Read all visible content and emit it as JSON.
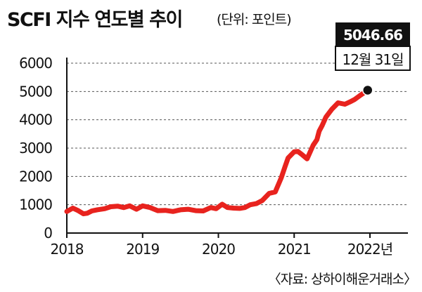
{
  "title": "SCFI 지수 연도별 추이",
  "unit": "(단위: 포인트)",
  "source": "〈자료: 상하이해운거래소〉",
  "callout": {
    "value": "5046.66",
    "date": "12월 31일"
  },
  "colors": {
    "line": "#e8231e",
    "text": "#111111",
    "grid": "#555555",
    "callout_bg": "#111111"
  },
  "chart_data": {
    "type": "line",
    "xlim": [
      2018,
      2022.3
    ],
    "ylim": [
      0,
      6000
    ],
    "x_ticks": [
      {
        "value": 2018,
        "label": "2018"
      },
      {
        "value": 2019,
        "label": "2019"
      },
      {
        "value": 2020,
        "label": "2020"
      },
      {
        "value": 2021,
        "label": "2021"
      },
      {
        "value": 2022,
        "label": "2022년"
      }
    ],
    "y_ticks": [
      {
        "value": 0,
        "label": "0"
      },
      {
        "value": 1000,
        "label": "1000"
      },
      {
        "value": 2000,
        "label": "2000"
      },
      {
        "value": 3000,
        "label": "3000"
      },
      {
        "value": 4000,
        "label": "4000"
      },
      {
        "value": 5000,
        "label": "5000"
      },
      {
        "value": 6000,
        "label": "6000"
      }
    ],
    "grid": "horizontal-dashed",
    "series": [
      {
        "x": [
          2018.0,
          2018.08,
          2018.15,
          2018.22,
          2018.27,
          2018.33,
          2018.4,
          2018.5,
          2018.58,
          2018.67,
          2018.75,
          2018.83,
          2018.92,
          2019.0,
          2019.1,
          2019.2,
          2019.3,
          2019.4,
          2019.5,
          2019.6,
          2019.7,
          2019.8,
          2019.9,
          2019.97,
          2020.05,
          2020.12,
          2020.2,
          2020.28,
          2020.35,
          2020.42,
          2020.5,
          2020.58,
          2020.67,
          2020.75,
          2020.83,
          2020.88,
          2020.92,
          2021.0,
          2021.05,
          2021.1,
          2021.17,
          2021.25,
          2021.3,
          2021.33,
          2021.37,
          2021.42,
          2021.5,
          2021.58,
          2021.67,
          2021.75,
          2021.8,
          2021.88,
          2021.97
        ],
        "y": [
          760,
          880,
          790,
          680,
          700,
          780,
          820,
          860,
          930,
          950,
          900,
          960,
          840,
          960,
          900,
          790,
          800,
          760,
          820,
          840,
          790,
          780,
          900,
          860,
          1020,
          900,
          880,
          870,
          900,
          1000,
          1040,
          1150,
          1400,
          1450,
          1950,
          2350,
          2650,
          2870,
          2880,
          2780,
          2620,
          3100,
          3300,
          3600,
          3800,
          4100,
          4380,
          4600,
          4550,
          4650,
          4720,
          4880,
          5046.66
        ]
      }
    ]
  }
}
